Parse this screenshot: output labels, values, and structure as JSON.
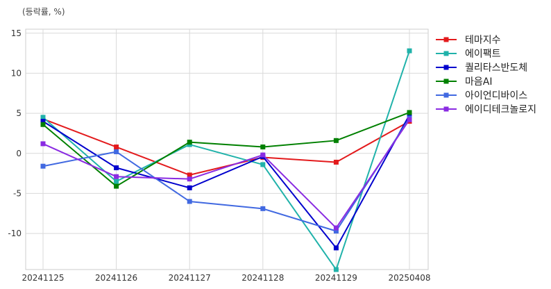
{
  "chart_data": {
    "type": "line",
    "unit_label": "(등락률, %)",
    "categories": [
      "20241125",
      "20241126",
      "20241127",
      "20241128",
      "20241129",
      "20250408"
    ],
    "ylim": [
      -14.5,
      15.5
    ],
    "yticks": [
      15,
      10,
      5,
      0,
      -5,
      -10
    ],
    "grid": true,
    "legend_position": "right",
    "series": [
      {
        "name": "테마지수",
        "color": "#e31a1c",
        "values": [
          4.3,
          0.8,
          -2.7,
          -0.5,
          -1.1,
          4.0
        ]
      },
      {
        "name": "에이팩트",
        "color": "#20b2aa",
        "values": [
          4.5,
          -3.5,
          1.1,
          -1.4,
          -14.5,
          12.8
        ]
      },
      {
        "name": "퀄리타스반도체",
        "color": "#0000cd",
        "values": [
          4.0,
          -1.8,
          -4.3,
          -0.4,
          -11.8,
          4.8
        ]
      },
      {
        "name": "마음AI",
        "color": "#008000",
        "values": [
          3.6,
          -4.1,
          1.4,
          0.8,
          1.6,
          5.1
        ]
      },
      {
        "name": "아이언디바이스",
        "color": "#4169e1",
        "values": [
          -1.6,
          0.2,
          -6.0,
          -6.9,
          -9.7,
          4.4
        ]
      },
      {
        "name": "에이디테크놀로지",
        "color": "#8a2be2",
        "values": [
          1.2,
          -2.9,
          -3.2,
          -0.2,
          -9.3,
          4.2
        ]
      }
    ]
  }
}
